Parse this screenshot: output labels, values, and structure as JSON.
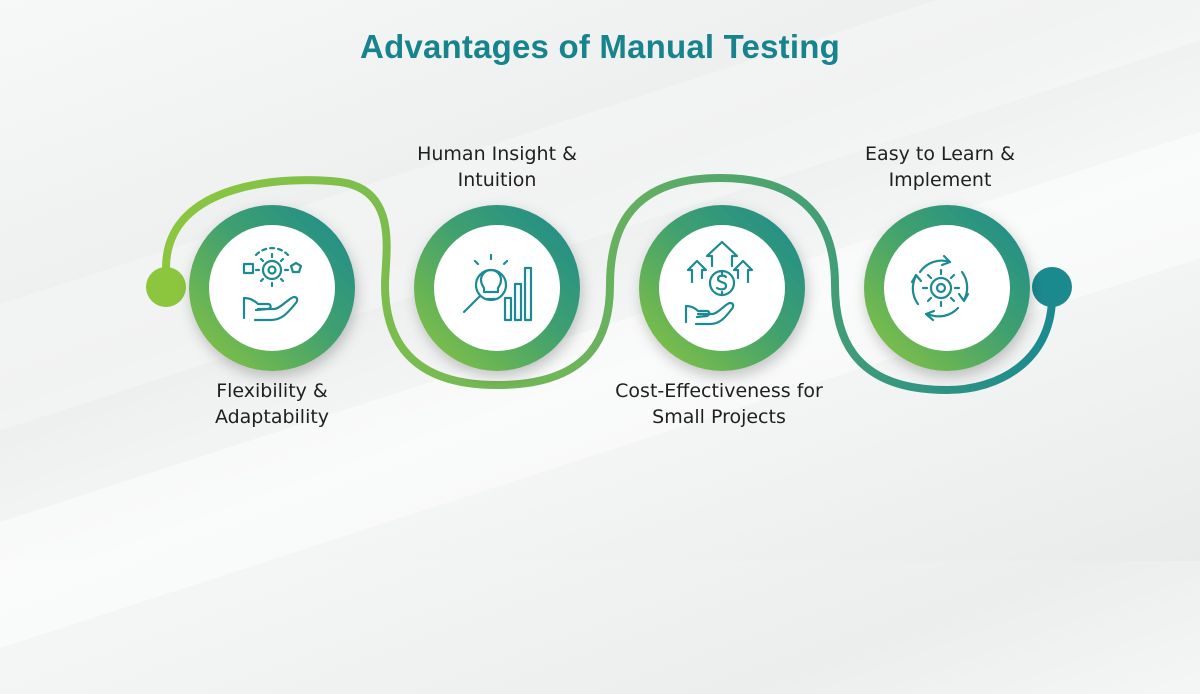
{
  "title": "Advantages of Manual Testing",
  "colors": {
    "title": "#17838d",
    "green": "#8cc63f",
    "teal": "#1b8a8f",
    "icon": "#1c8a93"
  },
  "steps": [
    {
      "line1": "Flexibility &",
      "line2": "Adaptability",
      "icon": "hand-gears-icon"
    },
    {
      "line1": "Human Insight &",
      "line2": "Intuition",
      "icon": "bulb-magnifier-chart-icon"
    },
    {
      "line1": "Cost-Effectiveness for",
      "line2": "Small Projects",
      "icon": "dollar-arrows-hand-icon"
    },
    {
      "line1": "Easy to Learn &",
      "line2": "Implement",
      "icon": "gear-cycle-icon"
    }
  ]
}
